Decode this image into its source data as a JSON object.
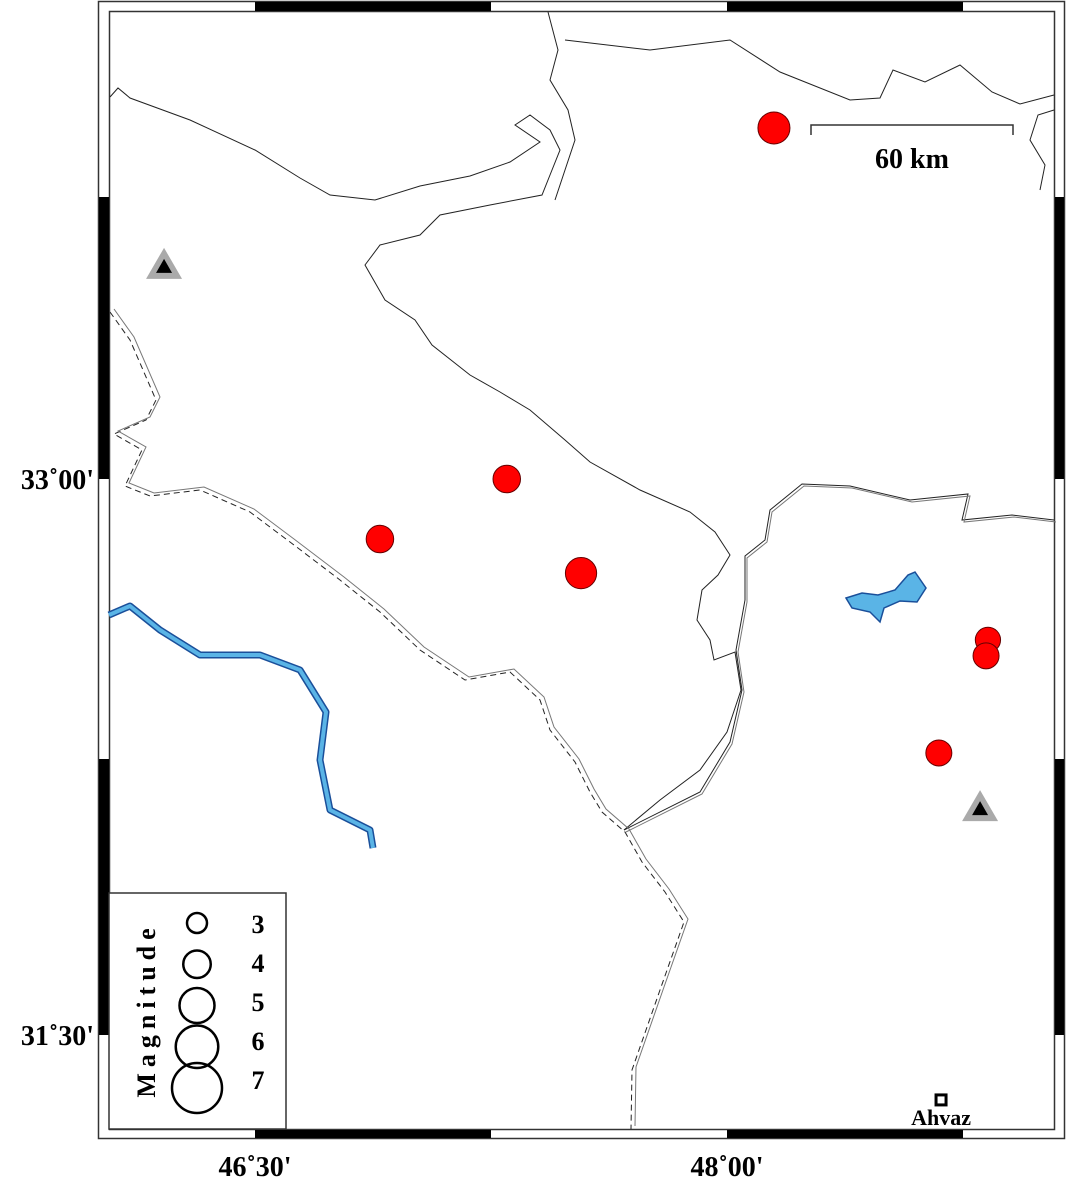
{
  "map": {
    "lon_ticks": [
      {
        "value": 46.5,
        "label": "46˚30'"
      },
      {
        "value": 48.0,
        "label": "48˚00'"
      }
    ],
    "lat_ticks": [
      {
        "value": 33.0,
        "label": "33˚00'"
      },
      {
        "value": 31.5,
        "label": "31˚30'"
      }
    ],
    "scale_bar": {
      "label": "60 km"
    },
    "colors": {
      "event": "#ff0000",
      "water": "#5ab4e6",
      "station_outer": "#aaaaaa",
      "station_inner": "#000000"
    },
    "events": [
      {
        "lon": 48.149,
        "lat": 33.947,
        "mag": 4.6
      },
      {
        "lon": 47.3,
        "lat": 33.0,
        "mag": 4.0
      },
      {
        "lon": 46.897,
        "lat": 32.838,
        "mag": 4.0
      },
      {
        "lon": 47.536,
        "lat": 32.746,
        "mag": 4.5
      },
      {
        "lon": 48.829,
        "lat": 32.566,
        "mag": 3.7
      },
      {
        "lon": 48.823,
        "lat": 32.523,
        "mag": 3.8
      },
      {
        "lon": 48.673,
        "lat": 32.261,
        "mag": 3.8
      }
    ],
    "stations": [
      {
        "lon": 46.211,
        "lat": 33.575
      },
      {
        "lon": 48.804,
        "lat": 32.112
      }
    ],
    "cities": [
      {
        "name": "Ahvaz",
        "lon": 48.68,
        "lat": 31.325
      }
    ]
  },
  "legend": {
    "title": "Magnitude",
    "items": [
      {
        "mag": 3,
        "label": "3"
      },
      {
        "mag": 4,
        "label": "4"
      },
      {
        "mag": 5,
        "label": "5"
      },
      {
        "mag": 6,
        "label": "6"
      },
      {
        "mag": 7,
        "label": "7"
      }
    ]
  }
}
